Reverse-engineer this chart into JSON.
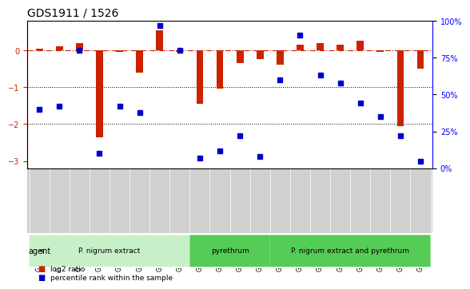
{
  "title": "GDS1911 / 1526",
  "samples": [
    "GSM66824",
    "GSM66825",
    "GSM66826",
    "GSM66827",
    "GSM66828",
    "GSM66829",
    "GSM66830",
    "GSM66831",
    "GSM66840",
    "GSM66841",
    "GSM66842",
    "GSM66843",
    "GSM66832",
    "GSM66833",
    "GSM66834",
    "GSM66835",
    "GSM66836",
    "GSM66837",
    "GSM66838",
    "GSM66839"
  ],
  "log2_ratio": [
    0.05,
    0.1,
    0.2,
    -2.35,
    -0.05,
    -0.6,
    0.55,
    -0.05,
    -1.45,
    -1.05,
    -0.35,
    -0.25,
    -0.4,
    0.15,
    0.2,
    0.15,
    0.25,
    -0.05,
    -2.05,
    -0.5
  ],
  "percentile": [
    40,
    42,
    80,
    10,
    42,
    38,
    97,
    80,
    7,
    12,
    22,
    8,
    60,
    90,
    63,
    58,
    44,
    35,
    22,
    5
  ],
  "groups": [
    {
      "label": "P. nigrum extract",
      "start": 0,
      "end": 8,
      "color": "#aaffaa"
    },
    {
      "label": "pyrethrum",
      "start": 8,
      "end": 12,
      "color": "#55dd55"
    },
    {
      "label": "P. nigrum extract and pyrethrum",
      "start": 12,
      "end": 20,
      "color": "#55dd55"
    }
  ],
  "bar_color_red": "#cc2200",
  "bar_color_blue": "#0000cc",
  "ylim_left": [
    -3.2,
    0.8
  ],
  "ylim_right": [
    0,
    100
  ],
  "yticks_left": [
    -3,
    -2,
    -1,
    0
  ],
  "yticks_right": [
    0,
    25,
    50,
    75,
    100
  ],
  "ytick_right_labels": [
    "0%",
    "25%",
    "50%",
    "75%",
    "100%"
  ],
  "hline_y": 0,
  "dotted_lines": [
    -1,
    -2
  ],
  "bg_color": "#ffffff",
  "plot_bg": "#ffffff",
  "group_colors": [
    "#c8f0c8",
    "#66cc66",
    "#66cc66"
  ],
  "group_light": "#c8f0c8",
  "group_dark": "#55cc55"
}
